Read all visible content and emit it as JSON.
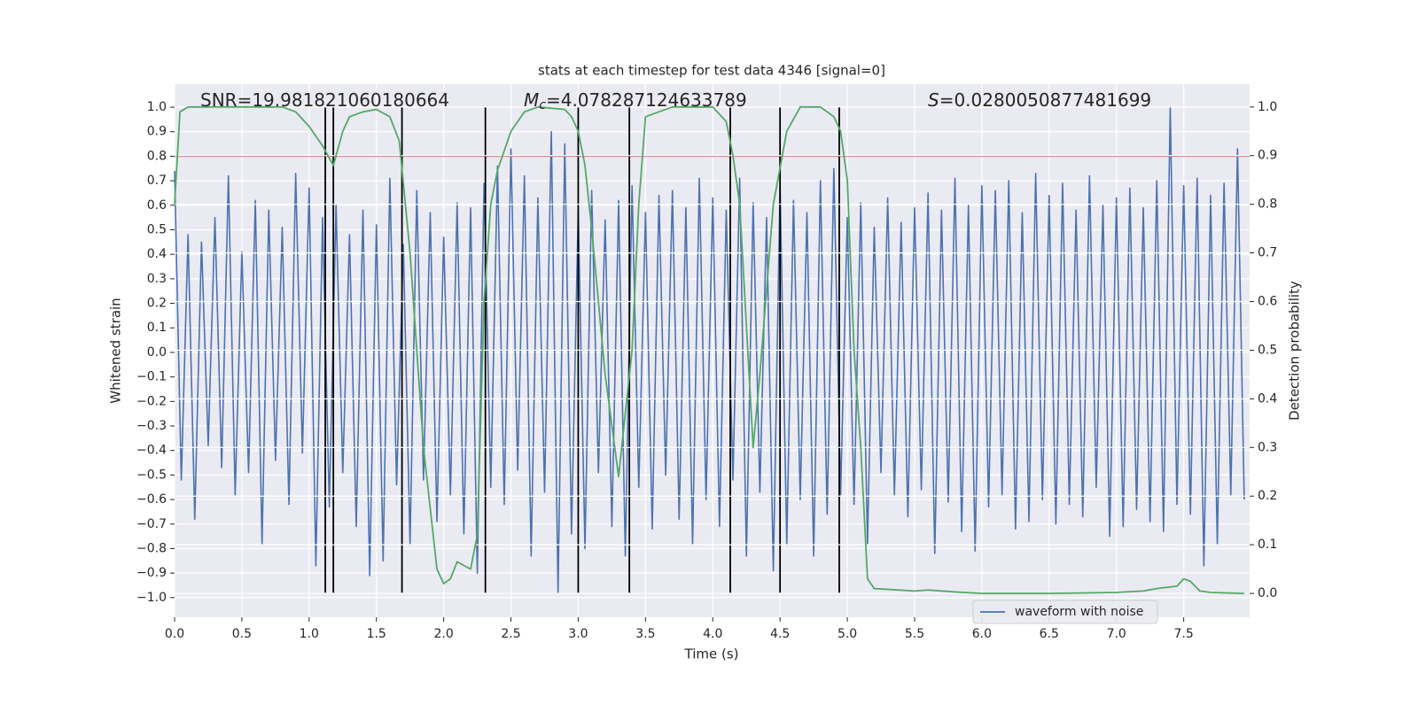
{
  "chart_data": {
    "type": "line",
    "title": "stats at each timestep for test data 4346 [signal=0]",
    "xlabel": "Time (s)",
    "ylabel": "Whitened strain",
    "y2label": "Detection probability",
    "annotations": [
      {
        "symbol": "SNR",
        "value": "=19.981821060180664"
      },
      {
        "symbol": "M",
        "subscript": "c",
        "value": "=4.078287124633789"
      },
      {
        "symbol": "S",
        "value": "=0.0280050877481699"
      }
    ],
    "xlim": [
      0,
      7.99
    ],
    "ylim": [
      -1.08,
      1.094
    ],
    "y2lim": [
      -0.049,
      1.047
    ],
    "xticks": [
      {
        "value": 0,
        "label": "0.0"
      },
      0.5,
      {
        "value": 1,
        "label": "1.0"
      },
      1.5,
      {
        "value": 2,
        "label": "2.0"
      },
      2.5,
      {
        "value": 3,
        "label": "3.0"
      },
      3.5,
      {
        "value": 4,
        "label": "4.0"
      },
      4.5,
      {
        "value": 5,
        "label": "5.0"
      },
      5.5,
      {
        "value": 6,
        "label": "6.0"
      },
      6.5,
      {
        "value": 7,
        "label": "7.0"
      },
      7.5
    ],
    "yticks": [
      {
        "value": -1,
        "label": "−1.0"
      },
      {
        "value": -0.9,
        "label": "−0.9"
      },
      {
        "value": -0.8,
        "label": "−0.8"
      },
      {
        "value": -0.7,
        "label": "−0.7"
      },
      {
        "value": -0.6,
        "label": "−0.6"
      },
      {
        "value": -0.5,
        "label": "−0.5"
      },
      {
        "value": -0.4,
        "label": "−0.4"
      },
      {
        "value": -0.3,
        "label": "−0.3"
      },
      {
        "value": -0.2,
        "label": "−0.2"
      },
      {
        "value": -0.1,
        "label": "−0.1"
      },
      {
        "value": 0,
        "label": "0.0"
      },
      0.1,
      0.2,
      0.3,
      0.4,
      0.5,
      0.6,
      0.7,
      0.8,
      0.9,
      {
        "value": 1,
        "label": "1.0"
      }
    ],
    "y2ticks": [
      {
        "value": 0,
        "label": "0.0"
      },
      0.1,
      0.2,
      0.3,
      0.4,
      0.5,
      0.6,
      0.7,
      0.8,
      0.9,
      {
        "value": 1,
        "label": "1.0"
      }
    ],
    "grid": true,
    "legend": "lower right",
    "background": "#eaeaf2",
    "hline": {
      "y": 0.8,
      "color": "#c44e52"
    },
    "vlines": {
      "x": [
        1.12,
        1.18,
        1.69,
        2.31,
        3.0,
        3.38,
        4.13,
        4.5,
        4.94
      ],
      "ymin": -0.98,
      "ymax": 1.0,
      "color": "#000000"
    },
    "series": [
      {
        "name": "waveform with noise",
        "color": "#4c72b0",
        "x": [
          0,
          0.05,
          0.1,
          0.15,
          0.2,
          0.25,
          0.3,
          0.35,
          0.4,
          0.45,
          0.5,
          0.55,
          0.6,
          0.65,
          0.7,
          0.75,
          0.8,
          0.85,
          0.9,
          0.95,
          1,
          1.05,
          1.1,
          1.15,
          1.2,
          1.25,
          1.3,
          1.35,
          1.4,
          1.45,
          1.5,
          1.55,
          1.6,
          1.65,
          1.7,
          1.75,
          1.8,
          1.85,
          1.9,
          1.95,
          2,
          2.05,
          2.1,
          2.15,
          2.2,
          2.25,
          2.3,
          2.35,
          2.4,
          2.45,
          2.5,
          2.55,
          2.6,
          2.65,
          2.7,
          2.75,
          2.8,
          2.85,
          2.9,
          2.95,
          3,
          3.05,
          3.1,
          3.15,
          3.2,
          3.25,
          3.3,
          3.35,
          3.4,
          3.45,
          3.5,
          3.55,
          3.6,
          3.65,
          3.7,
          3.75,
          3.8,
          3.85,
          3.9,
          3.95,
          4,
          4.05,
          4.1,
          4.15,
          4.2,
          4.25,
          4.3,
          4.35,
          4.4,
          4.45,
          4.5,
          4.55,
          4.6,
          4.65,
          4.7,
          4.75,
          4.8,
          4.85,
          4.9,
          4.95,
          5,
          5.05,
          5.1,
          5.15,
          5.2,
          5.25,
          5.3,
          5.35,
          5.4,
          5.45,
          5.5,
          5.55,
          5.6,
          5.65,
          5.7,
          5.75,
          5.8,
          5.85,
          5.9,
          5.95,
          6,
          6.05,
          6.1,
          6.15,
          6.2,
          6.25,
          6.3,
          6.35,
          6.4,
          6.45,
          6.5,
          6.55,
          6.6,
          6.65,
          6.7,
          6.75,
          6.8,
          6.85,
          6.9,
          6.95,
          7,
          7.05,
          7.1,
          7.15,
          7.2,
          7.25,
          7.3,
          7.35,
          7.4,
          7.45,
          7.5,
          7.55,
          7.6,
          7.65,
          7.7,
          7.75,
          7.8,
          7.85,
          7.9,
          7.95
        ],
        "values": [
          0.74,
          -0.52,
          0.48,
          -0.68,
          0.45,
          -0.38,
          0.55,
          -0.47,
          0.72,
          -0.58,
          0.41,
          -0.49,
          0.62,
          -0.78,
          0.58,
          -0.44,
          0.51,
          -0.62,
          0.73,
          -0.41,
          0.67,
          -0.87,
          0.55,
          -0.63,
          0.6,
          -0.49,
          0.48,
          -0.71,
          0.58,
          -0.91,
          0.52,
          -0.85,
          0.71,
          -0.54,
          0.44,
          -0.78,
          0.66,
          -0.52,
          0.57,
          -0.69,
          0.47,
          -0.58,
          0.61,
          -0.74,
          0.59,
          -0.9,
          0.69,
          -0.55,
          0.76,
          -0.62,
          0.83,
          -0.48,
          0.72,
          -0.83,
          0.63,
          -0.57,
          0.9,
          -0.98,
          0.85,
          -0.74,
          0.58,
          -0.8,
          0.66,
          -0.49,
          0.54,
          -0.71,
          0.62,
          -0.83,
          0.68,
          -0.55,
          0.57,
          -0.72,
          0.64,
          -0.5,
          0.66,
          -0.68,
          0.59,
          -0.78,
          0.71,
          -0.6,
          0.63,
          -0.71,
          0.58,
          -0.52,
          0.71,
          -0.83,
          0.61,
          -0.57,
          0.55,
          -0.89,
          0.68,
          -0.78,
          0.62,
          -0.6,
          0.57,
          -0.83,
          0.7,
          -0.66,
          0.75,
          -0.58,
          0.55,
          -0.62,
          0.61,
          -0.78,
          0.51,
          -0.49,
          0.63,
          -0.58,
          0.53,
          -0.67,
          0.59,
          -0.56,
          0.65,
          -0.82,
          0.58,
          -0.61,
          0.71,
          -0.73,
          0.6,
          -0.81,
          0.68,
          -0.63,
          0.66,
          -0.58,
          0.7,
          -0.72,
          0.57,
          -0.69,
          0.73,
          -0.6,
          0.64,
          -0.7,
          0.69,
          -0.62,
          0.58,
          -0.67,
          0.72,
          -0.55,
          0.6,
          -0.75,
          0.63,
          -0.71,
          0.67,
          -0.64,
          0.59,
          -0.69,
          0.7,
          -0.73,
          1.0,
          -0.62,
          0.68,
          -0.66,
          0.71,
          -0.87,
          0.64,
          -0.78,
          0.69,
          -0.58,
          0.83,
          -0.6
        ]
      },
      {
        "color": "#55a868",
        "axis": "y2",
        "x": [
          0,
          0.04,
          0.1,
          0.8,
          0.9,
          1,
          1.1,
          1.18,
          1.25,
          1.3,
          1.4,
          1.5,
          1.6,
          1.67,
          1.75,
          1.8,
          1.85,
          1.95,
          2,
          2.05,
          2.1,
          2.2,
          2.25,
          2.3,
          2.35,
          2.4,
          2.5,
          2.6,
          2.7,
          2.9,
          2.95,
          3,
          3.05,
          3.1,
          3.2,
          3.3,
          3.4,
          3.45,
          3.5,
          3.6,
          3.7,
          4,
          4.1,
          4.15,
          4.2,
          4.3,
          4.35,
          4.45,
          4.55,
          4.65,
          4.8,
          4.9,
          4.95,
          5,
          5.05,
          5.1,
          5.15,
          5.2,
          5.5,
          5.6,
          5.8,
          6,
          6.5,
          7,
          7.2,
          7.3,
          7.45,
          7.5,
          7.55,
          7.62,
          7.7,
          7.95
        ],
        "values": [
          0.8,
          0.99,
          1.0,
          1.0,
          0.99,
          0.96,
          0.92,
          0.88,
          0.95,
          0.98,
          0.99,
          0.995,
          0.98,
          0.93,
          0.7,
          0.5,
          0.3,
          0.05,
          0.02,
          0.03,
          0.065,
          0.05,
          0.12,
          0.6,
          0.8,
          0.87,
          0.95,
          0.99,
          1.0,
          0.995,
          0.98,
          0.95,
          0.88,
          0.75,
          0.45,
          0.24,
          0.5,
          0.8,
          0.98,
          0.99,
          1.0,
          1.0,
          0.97,
          0.9,
          0.8,
          0.3,
          0.45,
          0.8,
          0.95,
          1.0,
          1.0,
          0.98,
          0.95,
          0.85,
          0.5,
          0.3,
          0.03,
          0.01,
          0.005,
          0.007,
          0.003,
          0.0,
          0.0,
          0.002,
          0.005,
          0.01,
          0.015,
          0.03,
          0.025,
          0.005,
          0.002,
          0.0
        ]
      }
    ]
  }
}
